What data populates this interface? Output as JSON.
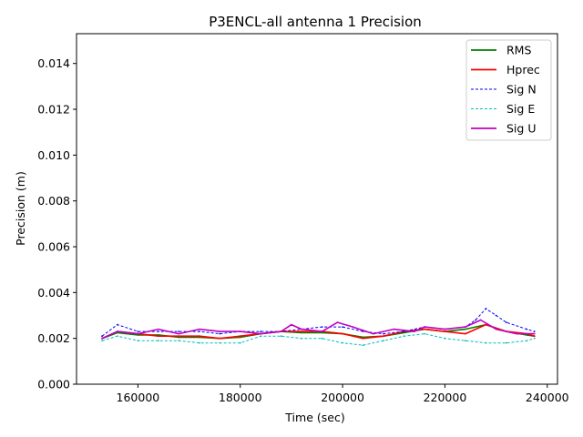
{
  "chart_data": {
    "type": "line",
    "title": "P3ENCL-all antenna 1 Precision",
    "xlabel": "Time (sec)",
    "ylabel": "Precision (m)",
    "xlim": [
      148000,
      242000
    ],
    "ylim": [
      0,
      0.0153
    ],
    "xticks": [
      160000,
      180000,
      200000,
      220000,
      240000
    ],
    "xtick_labels": [
      "160000",
      "180000",
      "200000",
      "220000",
      "240000"
    ],
    "yticks": [
      0.0,
      0.002,
      0.004,
      0.006,
      0.008,
      0.01,
      0.012,
      0.014
    ],
    "ytick_labels": [
      "0.000",
      "0.002",
      "0.004",
      "0.006",
      "0.008",
      "0.010",
      "0.012",
      "0.014"
    ],
    "grid": false,
    "legend_position": "top-right",
    "series": [
      {
        "name": "RMS",
        "color": "#008000",
        "style": "solid",
        "x": [
          153000,
          156000,
          160000,
          164000,
          168000,
          172000,
          176000,
          180000,
          184000,
          188000,
          192000,
          196000,
          200000,
          204000,
          208000,
          212000,
          216000,
          220000,
          224000,
          228000,
          232000,
          236000,
          237500
        ],
        "y": [
          0.002,
          0.00225,
          0.00215,
          0.00215,
          0.00205,
          0.00205,
          0.002,
          0.00205,
          0.0022,
          0.0023,
          0.00225,
          0.00225,
          0.0022,
          0.00205,
          0.0021,
          0.00225,
          0.0024,
          0.0023,
          0.0024,
          0.0026,
          0.0023,
          0.00215,
          0.0021
        ]
      },
      {
        "name": "Hprec",
        "color": "#ff0000",
        "style": "solid",
        "x": [
          153000,
          156000,
          160000,
          164000,
          168000,
          172000,
          176000,
          180000,
          184000,
          188000,
          192000,
          196000,
          200000,
          204000,
          208000,
          212000,
          216000,
          220000,
          224000,
          228000,
          232000,
          236000,
          237500
        ],
        "y": [
          0.002,
          0.0023,
          0.0022,
          0.0021,
          0.0021,
          0.0021,
          0.002,
          0.0021,
          0.0022,
          0.0023,
          0.0023,
          0.0023,
          0.0022,
          0.002,
          0.0021,
          0.0023,
          0.0024,
          0.0023,
          0.0022,
          0.0026,
          0.0023,
          0.0022,
          0.0021
        ]
      },
      {
        "name": "Sig N",
        "color": "#0000ff",
        "style": "dashed",
        "x": [
          153000,
          156000,
          160000,
          164000,
          168000,
          172000,
          176000,
          180000,
          184000,
          188000,
          192000,
          196000,
          200000,
          204000,
          208000,
          212000,
          216000,
          220000,
          224000,
          226000,
          228000,
          230000,
          232000,
          236000,
          237500
        ],
        "y": [
          0.0021,
          0.0026,
          0.0023,
          0.0023,
          0.0023,
          0.0023,
          0.0022,
          0.0023,
          0.0023,
          0.0023,
          0.0024,
          0.0025,
          0.0025,
          0.0023,
          0.0022,
          0.0023,
          0.0025,
          0.0024,
          0.0025,
          0.0028,
          0.0033,
          0.003,
          0.0027,
          0.0024,
          0.0023
        ]
      },
      {
        "name": "Sig E",
        "color": "#00bfbf",
        "style": "dashed",
        "x": [
          153000,
          156000,
          160000,
          164000,
          168000,
          172000,
          176000,
          180000,
          184000,
          188000,
          192000,
          196000,
          200000,
          204000,
          208000,
          212000,
          216000,
          220000,
          224000,
          228000,
          232000,
          236000,
          237500
        ],
        "y": [
          0.0019,
          0.0021,
          0.0019,
          0.0019,
          0.0019,
          0.0018,
          0.0018,
          0.0018,
          0.0021,
          0.0021,
          0.002,
          0.002,
          0.0018,
          0.0017,
          0.0019,
          0.0021,
          0.0022,
          0.002,
          0.0019,
          0.0018,
          0.0018,
          0.0019,
          0.002
        ]
      },
      {
        "name": "Sig U",
        "color": "#bf00bf",
        "style": "solid",
        "x": [
          153000,
          156000,
          160000,
          164000,
          168000,
          172000,
          176000,
          180000,
          184000,
          188000,
          190000,
          192000,
          196000,
          199000,
          202000,
          206000,
          210000,
          214000,
          216000,
          220000,
          224000,
          227000,
          230000,
          234000,
          237500
        ],
        "y": [
          0.002,
          0.0023,
          0.0022,
          0.0024,
          0.0022,
          0.0024,
          0.0023,
          0.0023,
          0.0022,
          0.0023,
          0.0026,
          0.0024,
          0.0023,
          0.0027,
          0.0025,
          0.0022,
          0.0024,
          0.0023,
          0.0025,
          0.0024,
          0.0025,
          0.0028,
          0.0024,
          0.0022,
          0.0022
        ]
      }
    ]
  }
}
